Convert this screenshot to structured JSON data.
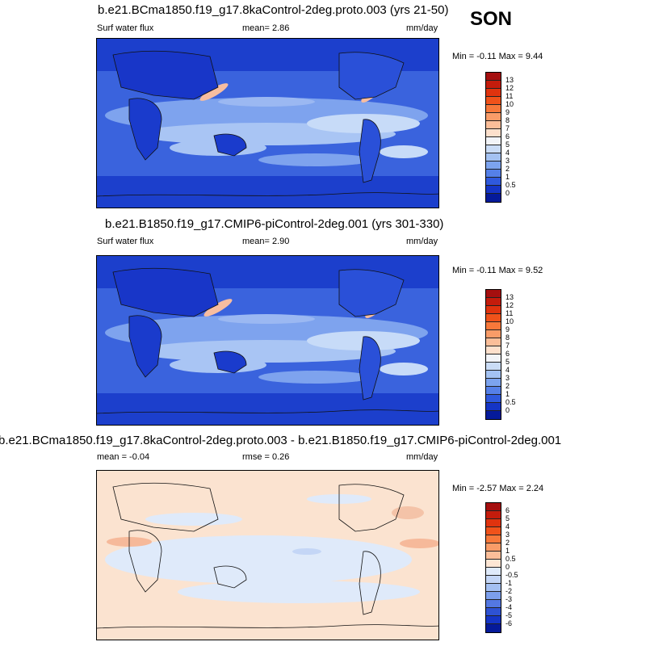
{
  "season": "SON",
  "panels": [
    {
      "title": "b.e21.BCma1850.f19_g17.8kaControl-2deg.proto.003 (yrs 21-50)",
      "left_label": "Surf water flux",
      "center_label": "mean=  2.86",
      "units": "mm/day",
      "minmax": "Min =  -0.11 Max =   9.44",
      "colorbar_labels": [
        "13",
        "12",
        "11",
        "10",
        "9",
        "8",
        "7",
        "6",
        "5",
        "4",
        "3",
        "2",
        "1",
        "0.5",
        "0"
      ],
      "colorbar_colors": [
        "#a50f0f",
        "#c41c0c",
        "#e0330e",
        "#f0521a",
        "#f7783a",
        "#f99c68",
        "#fbbe99",
        "#fde0cc",
        "#f2f4f8",
        "#cadcf6",
        "#a4c2f2",
        "#7ca3ee",
        "#5580e8",
        "#2f59dd",
        "#1535c6",
        "#051a9a"
      ]
    },
    {
      "title": "b.e21.B1850.f19_g17.CMIP6-piControl-2deg.001 (yrs 301-330)",
      "left_label": "Surf water flux",
      "center_label": "mean=  2.90",
      "units": "mm/day",
      "minmax": "Min =  -0.11 Max =   9.52",
      "colorbar_labels": [
        "13",
        "12",
        "11",
        "10",
        "9",
        "8",
        "7",
        "6",
        "5",
        "4",
        "3",
        "2",
        "1",
        "0.5",
        "0"
      ],
      "colorbar_colors": [
        "#a50f0f",
        "#c41c0c",
        "#e0330e",
        "#f0521a",
        "#f7783a",
        "#f99c68",
        "#fbbe99",
        "#fde0cc",
        "#f2f4f8",
        "#cadcf6",
        "#a4c2f2",
        "#7ca3ee",
        "#5580e8",
        "#2f59dd",
        "#1535c6",
        "#051a9a"
      ]
    },
    {
      "title": "b.e21.BCma1850.f19_g17.8kaControl-2deg.proto.003 - b.e21.B1850.f19_g17.CMIP6-piControl-2deg.001",
      "left_label": "mean =  -0.04",
      "center_label": "rmse =   0.26",
      "units": "mm/day",
      "minmax": "Min =  -2.57 Max =   2.24",
      "colorbar_labels": [
        "6",
        "5",
        "4",
        "3",
        "2",
        "1",
        "0.5",
        "0",
        "-0.5",
        "-1",
        "-2",
        "-3",
        "-4",
        "-5",
        "-6"
      ],
      "colorbar_colors": [
        "#a50f0f",
        "#c41c0c",
        "#e0330e",
        "#f0521a",
        "#f7783a",
        "#f99c68",
        "#fbbe99",
        "#fde6d4",
        "#dfeafa",
        "#c4d6f6",
        "#a4c0f2",
        "#7c9fec",
        "#5478e2",
        "#2e52d3",
        "#1535c6",
        "#051a9a"
      ]
    }
  ],
  "map_colors": {
    "ocean_base": "#5c86e6",
    "ocean_mid": "#8fb0f0",
    "ocean_light": "#c3d6f7",
    "dry": "#0b23b7",
    "deep": "#1b3fcf",
    "warm": "#f7bda0",
    "diff_base": "#fbe3d0",
    "diff_neg": "#cfe0f8",
    "diff_neg2": "#a9c3f1",
    "diff_pos": "#f6b99a",
    "coast": "#111111"
  }
}
